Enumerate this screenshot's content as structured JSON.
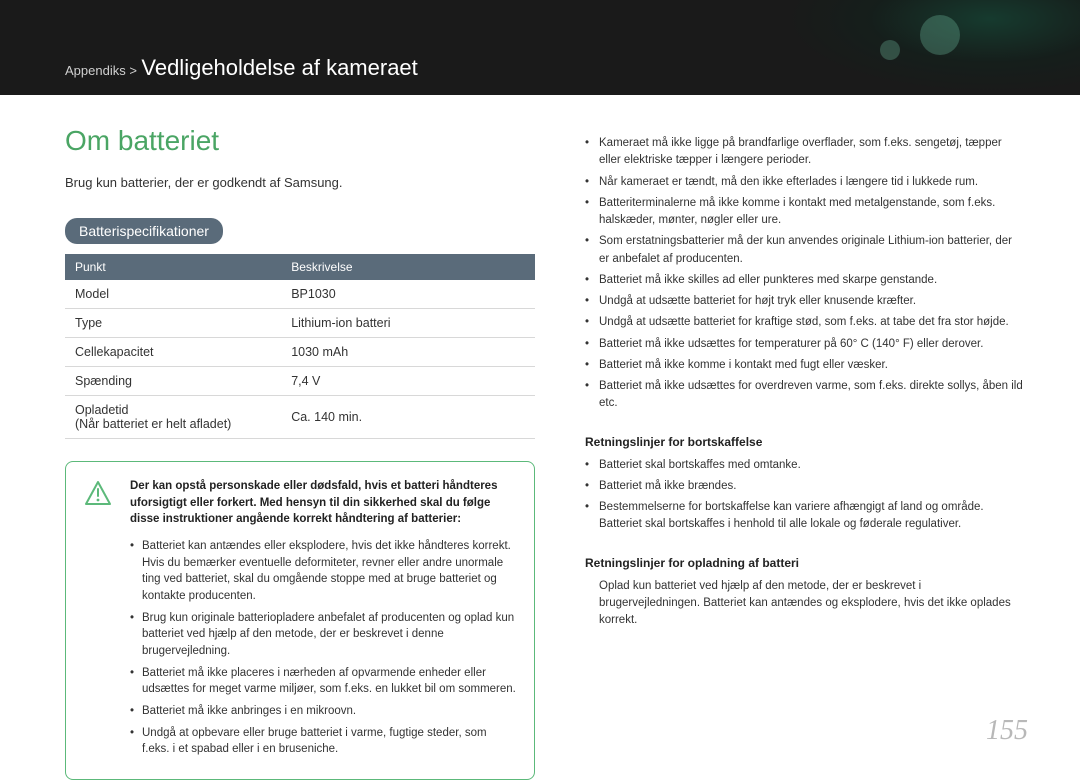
{
  "breadcrumb": {
    "prefix": "Appendiks >",
    "title": "Vedligeholdelse af kameraet"
  },
  "section_title": "Om batteriet",
  "intro": "Brug kun batterier, der er godkendt af Samsung.",
  "spec_badge": "Batterispecifikationer",
  "spec_table": {
    "columns": [
      "Punkt",
      "Beskrivelse"
    ],
    "rows": [
      [
        "Model",
        "BP1030"
      ],
      [
        "Type",
        "Lithium-ion batteri"
      ],
      [
        "Cellekapacitet",
        "1030 mAh"
      ],
      [
        "Spænding",
        "7,4 V"
      ],
      [
        "Opladetid\n(Når batteriet er helt afladet)",
        "Ca. 140 min."
      ]
    ]
  },
  "warning": {
    "lead": "Der kan opstå personskade eller dødsfald, hvis et batteri håndteres uforsigtigt eller forkert. Med hensyn til din sikkerhed skal du følge disse instruktioner angående korrekt håndtering af batterier:",
    "items": [
      "Batteriet kan antændes eller eksplodere, hvis det ikke håndteres korrekt. Hvis du bemærker eventuelle deformiteter, revner eller andre unormale ting ved batteriet, skal du omgående stoppe med at bruge batteriet og kontakte producenten.",
      "Brug kun originale batteriopladere anbefalet af producenten og oplad kun batteriet ved hjælp af den metode, der er beskrevet i denne brugervejledning.",
      "Batteriet må ikke placeres i nærheden af opvarmende enheder eller udsættes for meget varme miljøer, som f.eks. en lukket bil om sommeren.",
      "Batteriet må ikke anbringes i en mikroovn.",
      "Undgå at opbevare eller bruge batteriet i varme, fugtige steder, som f.eks. i et spabad eller i en bruseniche."
    ]
  },
  "right": {
    "top_items": [
      "Kameraet må ikke ligge på brandfarlige overflader, som f.eks. sengetøj, tæpper eller elektriske tæpper i længere perioder.",
      "Når kameraet er tændt, må den ikke efterlades i længere tid i lukkede rum.",
      "Batteriterminalerne må ikke komme i kontakt med metalgenstande, som f.eks. halskæder, mønter, nøgler eller ure.",
      "Som erstatningsbatterier må der kun anvendes originale Lithium-ion batterier, der er anbefalet af producenten.",
      "Batteriet må ikke skilles ad eller punkteres med skarpe genstande.",
      "Undgå at udsætte batteriet for højt tryk eller knusende kræfter.",
      "Undgå at udsætte batteriet for kraftige stød, som f.eks. at tabe det fra stor højde.",
      "Batteriet må ikke udsættes for temperaturer på 60° C (140° F) eller derover.",
      "Batteriet må ikke komme i kontakt med fugt eller væsker.",
      "Batteriet må ikke udsættes for overdreven varme, som f.eks. direkte sollys, åben ild etc."
    ],
    "disposal_head": "Retningslinjer for bortskaffelse",
    "disposal_items": [
      "Batteriet skal bortskaffes med omtanke.",
      "Batteriet må ikke brændes.",
      "Bestemmelserne for bortskaffelse kan variere afhængigt af land og område. Batteriet skal bortskaffes i henhold til alle lokale og føderale regulativer."
    ],
    "charge_head": "Retningslinjer for opladning af batteri",
    "charge_text": "Oplad kun batteriet ved hjælp af den metode, der er beskrevet i brugervejledningen. Batteriet kan antændes og eksplodere, hvis det ikke oplades korrekt."
  },
  "page_number": "155"
}
